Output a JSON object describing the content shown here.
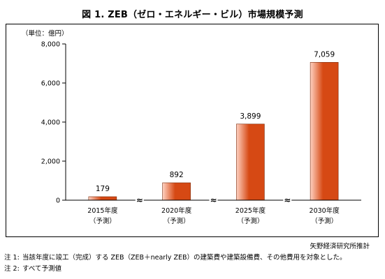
{
  "chart_data": {
    "type": "bar",
    "title": "図 1. ZEB（ゼロ・エネルギー・ビル）市場規模予測",
    "unit_label": "（単位：億円）",
    "categories": [
      {
        "line1": "2015年度",
        "line2": "（予測）"
      },
      {
        "line1": "2020年度",
        "line2": "（予測）"
      },
      {
        "line1": "2025年度",
        "line2": "（予測）"
      },
      {
        "line1": "2030年度",
        "line2": "（予測）"
      }
    ],
    "values": [
      179,
      892,
      3899,
      7059
    ],
    "value_labels": [
      "179",
      "892",
      "3,899",
      "7,059"
    ],
    "ylim": [
      0,
      8000
    ],
    "yticks": [
      0,
      2000,
      4000,
      6000,
      8000
    ],
    "ytick_labels": [
      "0",
      "2,000",
      "4,000",
      "6,000",
      "8,000"
    ],
    "axis_break_marks": "≈",
    "grid": false,
    "bar_color_light": "#ffd2c2",
    "bar_color_dark": "#d64914"
  },
  "source": "矢野経済研究所推計",
  "notes": [
    {
      "label": "注 1:",
      "text": "当該年度に竣工（完成）する ZEB（ZEB＋nearly ZEB）の建築費や建築設備費、その他費用を対象とした。"
    },
    {
      "label": "注 2:",
      "text": "すべて予測値"
    }
  ]
}
